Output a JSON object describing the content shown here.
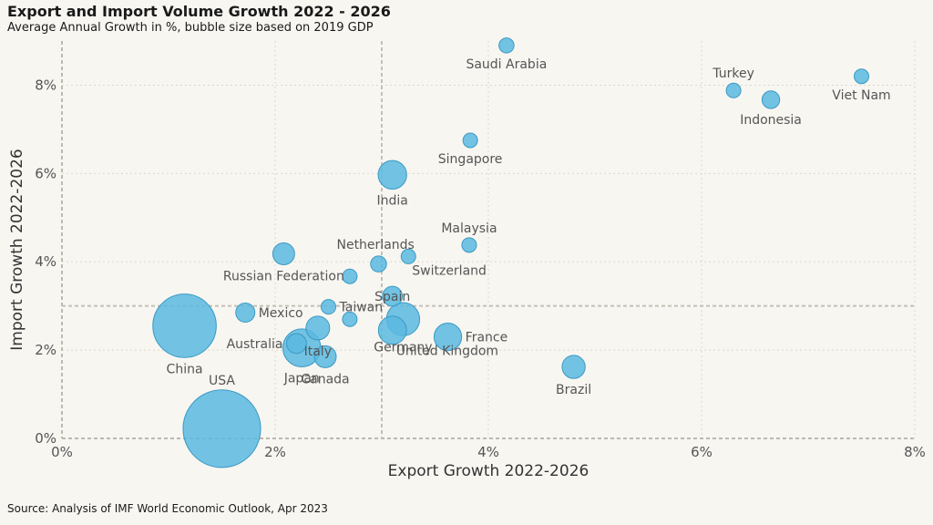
{
  "header": {
    "title": "Export and Import Volume Growth 2022 - 2026",
    "subtitle": "Average Annual Growth in %, bubble size based on 2019 GDP"
  },
  "footer": {
    "source": "Source: Analysis of IMF World Economic Outlook, Apr 2023"
  },
  "chart_data": {
    "type": "scatter",
    "subtype": "bubble",
    "title": "Export and Import Volume Growth 2022 - 2026",
    "subtitle": "Average Annual Growth in %, bubble size based on 2019 GDP",
    "xlabel": "Export Growth 2022-2026",
    "ylabel": "Import Growth 2022-2026",
    "xlim": [
      0,
      8
    ],
    "ylim": [
      0,
      9
    ],
    "x_ticks": [
      0,
      2,
      4,
      6,
      8
    ],
    "y_ticks": [
      0,
      2,
      4,
      6,
      8
    ],
    "x_tick_labels": [
      "0%",
      "2%",
      "4%",
      "6%",
      "8%"
    ],
    "y_tick_labels": [
      "0%",
      "2%",
      "4%",
      "6%",
      "8%"
    ],
    "reference_lines": {
      "x": 3.0,
      "y": 3.0
    },
    "grid": true,
    "bubble_color": "#5bb8e0",
    "bubble_stroke": "#3a9ac4",
    "points": [
      {
        "label": "USA",
        "x": 1.5,
        "y": 0.22,
        "size": 21.4,
        "label_pos": "above"
      },
      {
        "label": "China",
        "x": 1.15,
        "y": 2.55,
        "size": 14.3,
        "label_pos": "below"
      },
      {
        "label": "Japan",
        "x": 2.25,
        "y": 2.05,
        "size": 5.1,
        "label_pos": "below"
      },
      {
        "label": "Germany",
        "x": 3.2,
        "y": 2.7,
        "size": 3.9,
        "label_pos": "below"
      },
      {
        "label": "India",
        "x": 3.1,
        "y": 5.97,
        "size": 2.9,
        "label_pos": "below"
      },
      {
        "label": "United Kingdom",
        "x": 3.1,
        "y": 2.45,
        "size": 2.8,
        "label_pos": "below-right"
      },
      {
        "label": "France",
        "x": 3.62,
        "y": 2.3,
        "size": 2.7,
        "label_pos": "right"
      },
      {
        "label": "Italy",
        "x": 2.4,
        "y": 2.5,
        "size": 2.0,
        "label_pos": "below"
      },
      {
        "label": "Brazil",
        "x": 4.8,
        "y": 1.62,
        "size": 1.9,
        "label_pos": "below"
      },
      {
        "label": "Canada",
        "x": 2.47,
        "y": 1.85,
        "size": 1.7,
        "label_pos": "below"
      },
      {
        "label": "Russian Federation",
        "x": 2.08,
        "y": 4.18,
        "size": 1.7,
        "label_pos": "below"
      },
      {
        "label": "Spain",
        "x": 3.1,
        "y": 3.22,
        "size": 1.4,
        "label_pos": "center"
      },
      {
        "label": "Australia",
        "x": 2.2,
        "y": 2.15,
        "size": 1.4,
        "label_pos": "left"
      },
      {
        "label": "Indonesia",
        "x": 6.65,
        "y": 7.67,
        "size": 1.1,
        "label_pos": "below"
      },
      {
        "label": "Mexico",
        "x": 1.72,
        "y": 2.85,
        "size": 1.3,
        "label_pos": "right"
      },
      {
        "label": "Netherlands",
        "x": 2.97,
        "y": 3.95,
        "size": 0.9,
        "label_pos": "above-right"
      },
      {
        "label": "Saudi Arabia",
        "x": 4.17,
        "y": 8.9,
        "size": 0.8,
        "label_pos": "below"
      },
      {
        "label": "Turkey",
        "x": 6.3,
        "y": 7.88,
        "size": 0.76,
        "label_pos": "above"
      },
      {
        "label": "Switzerland",
        "x": 3.25,
        "y": 4.12,
        "size": 0.7,
        "label_pos": "below-right"
      },
      {
        "label": "Taiwan",
        "x": 2.5,
        "y": 2.98,
        "size": 0.6,
        "label_pos": "right"
      },
      {
        "label": "Singapore",
        "x": 3.83,
        "y": 6.75,
        "size": 0.37,
        "label_pos": "below"
      },
      {
        "label": "Malaysia",
        "x": 3.82,
        "y": 4.38,
        "size": 0.36,
        "label_pos": "above"
      },
      {
        "label": "Viet Nam",
        "x": 7.5,
        "y": 8.2,
        "size": 0.26,
        "label_pos": "below"
      },
      {
        "label": "",
        "x": 2.7,
        "y": 3.67,
        "size": 0.5,
        "label_pos": "none"
      },
      {
        "label": "",
        "x": 2.7,
        "y": 2.7,
        "size": 0.5,
        "label_pos": "none"
      }
    ]
  }
}
